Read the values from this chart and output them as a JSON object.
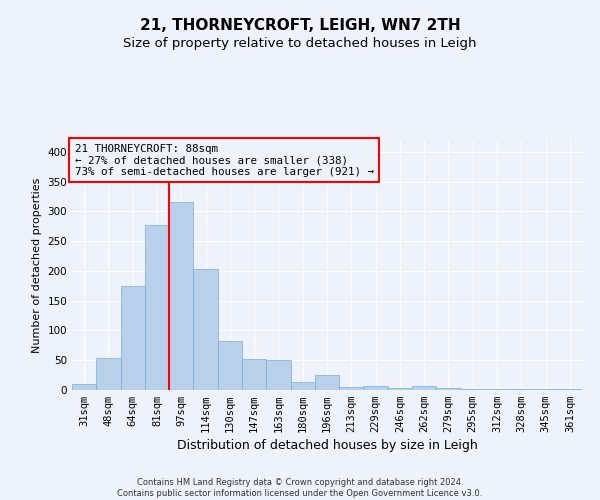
{
  "title": "21, THORNEYCROFT, LEIGH, WN7 2TH",
  "subtitle": "Size of property relative to detached houses in Leigh",
  "xlabel": "Distribution of detached houses by size in Leigh",
  "ylabel": "Number of detached properties",
  "footer_line1": "Contains HM Land Registry data © Crown copyright and database right 2024.",
  "footer_line2": "Contains public sector information licensed under the Open Government Licence v3.0.",
  "categories": [
    "31sqm",
    "48sqm",
    "64sqm",
    "81sqm",
    "97sqm",
    "114sqm",
    "130sqm",
    "147sqm",
    "163sqm",
    "180sqm",
    "196sqm",
    "213sqm",
    "229sqm",
    "246sqm",
    "262sqm",
    "279sqm",
    "295sqm",
    "312sqm",
    "328sqm",
    "345sqm",
    "361sqm"
  ],
  "values": [
    10,
    54,
    175,
    278,
    315,
    203,
    82,
    52,
    50,
    13,
    25,
    5,
    7,
    3,
    6,
    3,
    2,
    1,
    1,
    1,
    1
  ],
  "bar_color": "#b8d0ea",
  "bar_edge_color": "#7aaed4",
  "vline_x": 3.5,
  "vline_color": "red",
  "annotation_title": "21 THORNEYCROFT: 88sqm",
  "annotation_line2": "← 27% of detached houses are smaller (338)",
  "annotation_line3": "73% of semi-detached houses are larger (921) →",
  "annotation_box_color": "red",
  "ylim": [
    0,
    420
  ],
  "yticks": [
    0,
    50,
    100,
    150,
    200,
    250,
    300,
    350,
    400
  ],
  "bg_color": "#eef2fb",
  "grid_color": "#ffffff",
  "title_fontsize": 11,
  "subtitle_fontsize": 9.5,
  "xlabel_fontsize": 9,
  "ylabel_fontsize": 8,
  "tick_fontsize": 7.5,
  "annotation_fontsize": 7.8,
  "footer_fontsize": 6
}
